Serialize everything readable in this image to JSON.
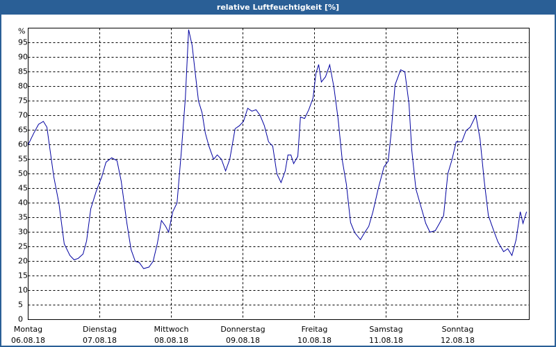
{
  "chart_data": {
    "type": "line",
    "title": "relative Luftfeuchtigkeit [%]",
    "x": [
      0,
      1.9,
      3.5,
      5.1,
      6.3,
      7.5,
      8.6,
      10.3,
      12.1,
      14.0,
      15.4,
      16.8,
      18.4,
      19.6,
      21.0,
      22.8,
      24.7,
      26.1,
      28.0,
      29.8,
      31.2,
      33.1,
      34.5,
      35.9,
      37.3,
      38.7,
      40.5,
      41.9,
      43.3,
      44.7,
      46.1,
      47.1,
      48.5,
      49.9,
      51.3,
      52.7,
      53.8,
      55.0,
      55.9,
      57.1,
      58.3,
      59.4,
      60.6,
      62.2,
      63.4,
      64.8,
      66.2,
      67.6,
      69.4,
      70.8,
      72.2,
      73.6,
      75.0,
      76.4,
      77.8,
      79.2,
      80.6,
      82.0,
      83.4,
      84.8,
      86.2,
      87.1,
      88.1,
      89.0,
      90.4,
      91.3,
      92.7,
      94.1,
      95.5,
      96.5,
      97.4,
      98.3,
      99.7,
      101.1,
      102.5,
      103.9,
      105.3,
      106.7,
      108.1,
      109.5,
      111.4,
      112.8,
      114.2,
      115.6,
      117.4,
      119.3,
      120.7,
      121.6,
      123.0,
      124.9,
      126.3,
      127.7,
      128.6,
      130.0,
      131.9,
      133.3,
      134.7,
      136.5,
      137.9,
      139.3,
      140.7,
      142.1,
      143.5,
      145.4,
      146.8,
      148.2,
      150.1,
      151.5,
      152.9,
      154.3,
      156.1,
      157.5,
      159.4,
      160.8,
      162.2,
      163.6,
      165.0,
      165.9,
      167.1
    ],
    "series": [
      {
        "name": "relative Luftfeuchtigkeit",
        "color": "#0000a0",
        "values": [
          60,
          64,
          67,
          68,
          66,
          57,
          49,
          40,
          26,
          22,
          20.5,
          21,
          22.5,
          27,
          38,
          44,
          49,
          54,
          55.5,
          54.5,
          47.5,
          33,
          24,
          20,
          19.5,
          17.5,
          18,
          20,
          26,
          34,
          32,
          30,
          37,
          40,
          57,
          76,
          99.5,
          94,
          85.7,
          75,
          71,
          64,
          59.5,
          55,
          56.5,
          55,
          51,
          55,
          65.5,
          66.5,
          68,
          72.5,
          71.5,
          72,
          70,
          66.5,
          61,
          59.5,
          50,
          47,
          51,
          56.5,
          56.5,
          53.5,
          56,
          69.5,
          69,
          72,
          76,
          84.5,
          87.5,
          81.5,
          83.3,
          87.4,
          79.8,
          69,
          54.8,
          46.4,
          33.3,
          29.8,
          27.4,
          29.8,
          32,
          37,
          45,
          52.4,
          54.3,
          63,
          80.5,
          85.7,
          85,
          74,
          58.3,
          44.8,
          38,
          33,
          30,
          30.5,
          33,
          35.7,
          50,
          54.8,
          61,
          61,
          64.8,
          66,
          70,
          62,
          47.6,
          35.7,
          30.5,
          26.7,
          23.3,
          24.3,
          22,
          27.4,
          37,
          33,
          37
        ]
      }
    ],
    "xlim": [
      0,
      168
    ],
    "xticks": [
      {
        "value": 0,
        "label": "Montag",
        "date": "06.08.18"
      },
      {
        "value": 24,
        "label": "Dienstag",
        "date": "07.08.18"
      },
      {
        "value": 48,
        "label": "Mittwoch",
        "date": "08.08.18"
      },
      {
        "value": 72,
        "label": "Donnerstag",
        "date": "09.08.18"
      },
      {
        "value": 96,
        "label": "Freitag",
        "date": "10.08.18"
      },
      {
        "value": 120,
        "label": "Samstag",
        "date": "11.08.18"
      },
      {
        "value": 144,
        "label": "Sonntag",
        "date": "12.08.18"
      }
    ],
    "ylim": [
      0,
      100
    ],
    "yticks": [
      0,
      5,
      10,
      15,
      20,
      25,
      30,
      35,
      40,
      45,
      50,
      55,
      60,
      65,
      70,
      75,
      80,
      85,
      90,
      95,
      {
        "value": 100,
        "label": "%"
      }
    ],
    "grid": true
  }
}
